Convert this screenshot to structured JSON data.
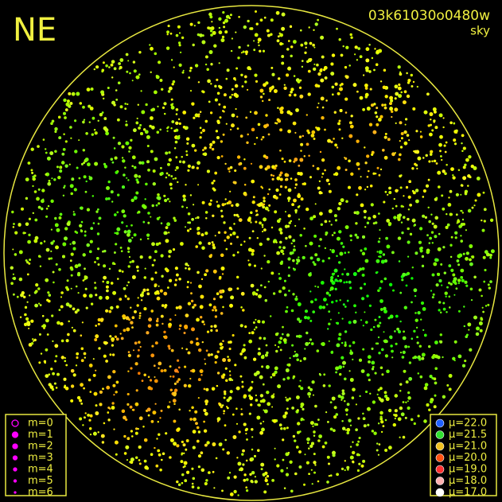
{
  "header": {
    "direction": "NE",
    "image_id": "03k61030o0480w",
    "mode": "sky"
  },
  "magnitude_legend": {
    "color": "#ff00ff",
    "items": [
      "m=0",
      "m=1",
      "m=2",
      "m=3",
      "m=4",
      "m=5",
      "m=6"
    ]
  },
  "brightness_legend": {
    "items": [
      {
        "label": "μ=22.0",
        "color": "#2060ff"
      },
      {
        "label": "μ=21.5",
        "color": "#30e030"
      },
      {
        "label": "μ=21.0",
        "color": "#f0c020"
      },
      {
        "label": "μ=20.0",
        "color": "#ff5010"
      },
      {
        "label": "μ=19.0",
        "color": "#ff3030"
      },
      {
        "label": "μ=18.0",
        "color": "#ffb0b0"
      },
      {
        "label": "μ=17.0",
        "color": "#ffffff"
      }
    ]
  }
}
